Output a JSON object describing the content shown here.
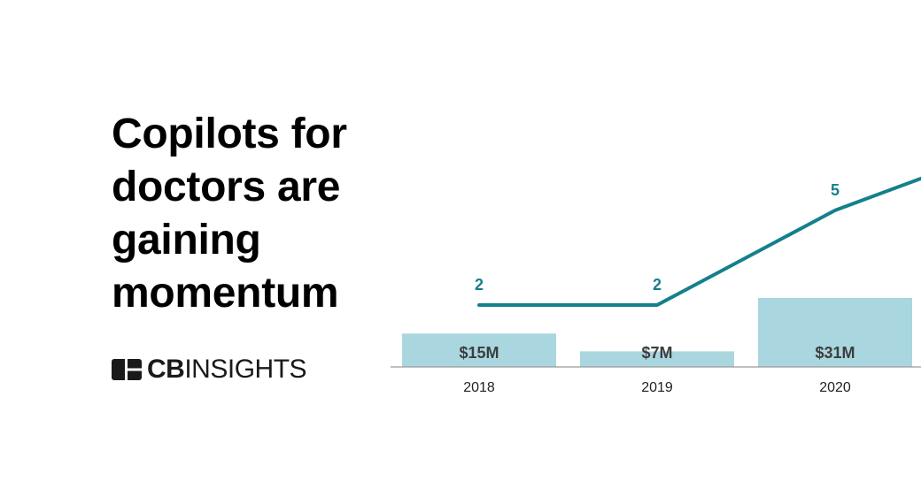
{
  "headline": "Copilots for doctors are gaining momentum",
  "brand": {
    "name_bold": "CB",
    "name_rest": "INSIGHTS",
    "icon": "cb-logo-icon"
  },
  "colors": {
    "bar": "#a9d6df",
    "line": "#14808c",
    "axis": "#9a9a9a",
    "text": "#000000"
  },
  "chart_data": {
    "type": "bar",
    "categories": [
      "2018",
      "2019",
      "2020"
    ],
    "series": [
      {
        "type": "bar",
        "values": [
          15,
          7,
          31
        ],
        "labels": [
          "$15M",
          "$7M",
          "$31M"
        ]
      },
      {
        "type": "line",
        "values": [
          2,
          2,
          5
        ],
        "labels": [
          "2",
          "2",
          "5"
        ],
        "continues_beyond_view": true
      }
    ],
    "title": "",
    "xlabel": "",
    "ylabel": "",
    "grid": false,
    "legend": "none"
  }
}
